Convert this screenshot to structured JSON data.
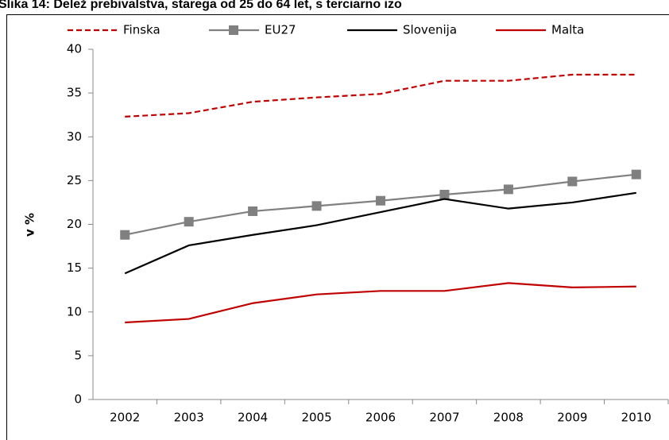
{
  "chart_data": {
    "type": "line",
    "title": "Slika 14: Delež prebivalstva, starega od 25 do 64 let, s terciarno izo",
    "y_label": "v %",
    "categories": [
      "2002",
      "2003",
      "2004",
      "2005",
      "2006",
      "2007",
      "2008",
      "2009",
      "2010"
    ],
    "series": [
      {
        "name": "Finska",
        "color": "#c00000",
        "dash": true,
        "marker": "none",
        "values": [
          32.3,
          32.7,
          34.0,
          34.5,
          34.9,
          36.4,
          36.4,
          37.1,
          37.1
        ]
      },
      {
        "name": "EU27",
        "color": "#808080",
        "dash": false,
        "marker": "square",
        "values": [
          18.8,
          20.3,
          21.5,
          22.1,
          22.7,
          23.4,
          24.0,
          24.9,
          25.7
        ]
      },
      {
        "name": "Slovenija",
        "color": "#000000",
        "dash": false,
        "marker": "none",
        "values": [
          14.4,
          17.6,
          18.8,
          19.9,
          21.4,
          22.9,
          21.8,
          22.5,
          23.6
        ]
      },
      {
        "name": "Malta",
        "color": "#c00000",
        "dash": false,
        "marker": "none",
        "values": [
          8.8,
          9.2,
          11.0,
          12.0,
          12.4,
          12.4,
          13.3,
          12.8,
          12.9
        ]
      }
    ],
    "ylim": [
      0,
      40
    ],
    "yticks": [
      0,
      5,
      10,
      15,
      20,
      25,
      30,
      35,
      40
    ],
    "grid": false,
    "legend": "top"
  }
}
